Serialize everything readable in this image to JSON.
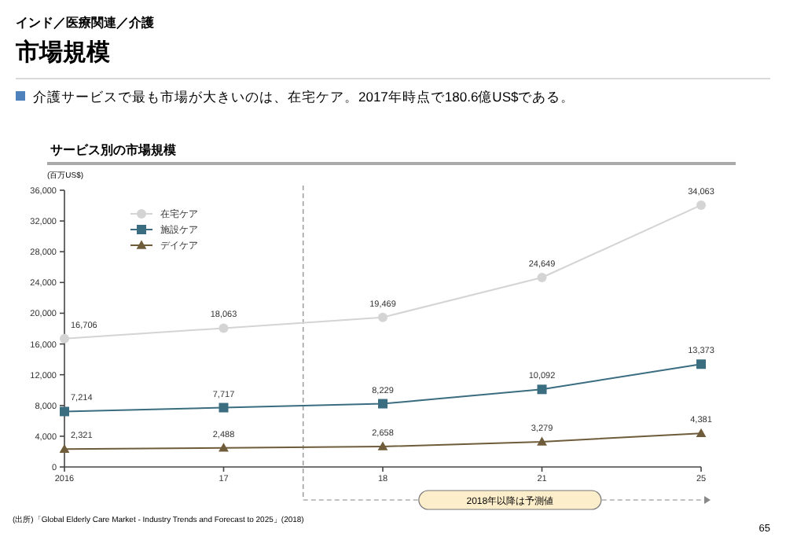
{
  "chart_data": {
    "type": "line",
    "title": "市場規模",
    "subtitle": "介護サービスで最も市場が大きいのは、在宅ケア。2017年時点で180.6億US$である。",
    "ylabel": "(百万US$)",
    "annotations": [
      "インド／医療関連／介護",
      "サービス別の市場規模",
      "(出所)「Global Elderly Care Market - Industry Trends and Forecast to 2025」(2018)",
      "65",
      "2018年以降は予測値"
    ],
    "categories": [
      "2016",
      "17",
      "18",
      "21",
      "25"
    ],
    "series": [
      {
        "name": "在宅ケア",
        "color": "#d4d4d4",
        "marker": "circle",
        "values": [
          16706,
          18063,
          19469,
          24649,
          34063
        ],
        "value_labels": [
          "16,706",
          "18,063",
          "19,469",
          "24,649",
          "34,063"
        ]
      },
      {
        "name": "施設ケア",
        "color": "#3b6d80",
        "marker": "square",
        "values": [
          7214,
          7717,
          8229,
          10092,
          13373
        ],
        "value_labels": [
          "7,214",
          "7,717",
          "8,229",
          "10,092",
          "13,373"
        ]
      },
      {
        "name": "デイケア",
        "color": "#6e5c3a",
        "marker": "triangle",
        "values": [
          2321,
          2488,
          2658,
          3279,
          4381
        ],
        "value_labels": [
          "2,321",
          "2,488",
          "2,658",
          "3,279",
          "4,381"
        ]
      }
    ],
    "ylim": [
      0,
      36000
    ],
    "yticks": [
      {
        "value": 0,
        "label": "0"
      },
      {
        "value": 4000,
        "label": "4,000"
      },
      {
        "value": 8000,
        "label": "8,000"
      },
      {
        "value": 12000,
        "label": "12,000"
      },
      {
        "value": 16000,
        "label": "16,000"
      },
      {
        "value": 20000,
        "label": "20,000"
      },
      {
        "value": 24000,
        "label": "24,000"
      },
      {
        "value": 28000,
        "label": "28,000"
      },
      {
        "value": 32000,
        "label": "32,000"
      },
      {
        "value": 36000,
        "label": "36,000"
      }
    ],
    "legend": "top left",
    "grid": false,
    "line_style": "solid"
  }
}
